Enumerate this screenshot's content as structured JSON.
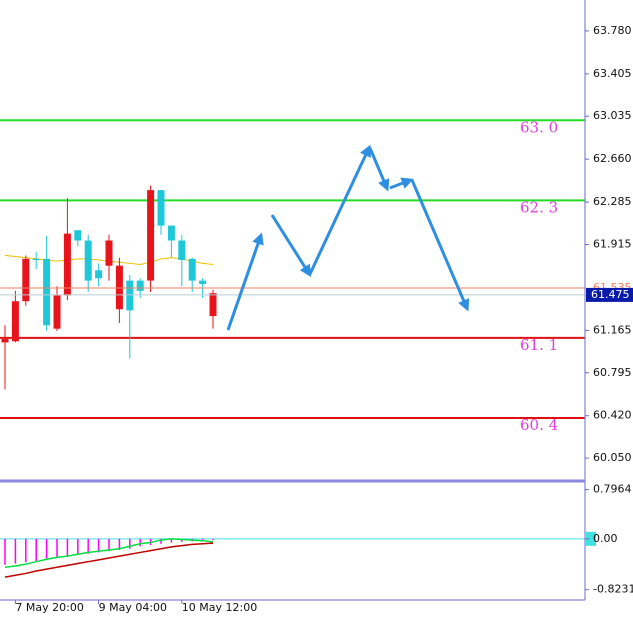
{
  "chart_data": [
    {
      "type": "candlestick",
      "categories": [
        null,
        "7 May 20:00",
        null,
        null,
        null,
        null,
        null,
        null,
        null,
        "9 May 04:00",
        null,
        null,
        null,
        null,
        null,
        null,
        null,
        "10 May 12:00",
        null,
        null,
        null
      ],
      "open": [
        61.09,
        61.42,
        61.79,
        61.78,
        61.21,
        61.47,
        62.01,
        61.95,
        61.6,
        61.62,
        61.95,
        61.73,
        61.34,
        61.51,
        62.39,
        62.08,
        61.95,
        61.78,
        61.6,
        61.57,
        61.49
      ],
      "high": [
        61.21,
        61.51,
        61.82,
        61.85,
        61.99,
        61.55,
        62.32,
        62.04,
        62.0,
        61.75,
        62.0,
        61.8,
        61.65,
        61.62,
        62.43,
        62.39,
        62.08,
        62.0,
        61.8,
        61.62,
        61.52
      ],
      "low": [
        60.65,
        61.06,
        61.38,
        61.7,
        61.16,
        61.16,
        61.43,
        61.9,
        61.5,
        61.55,
        61.6,
        61.23,
        60.92,
        61.45,
        61.5,
        62.0,
        61.8,
        61.55,
        61.5,
        61.45,
        61.18
      ],
      "close": [
        61.06,
        61.07,
        61.42,
        61.79,
        61.79,
        61.18,
        61.47,
        62.04,
        61.95,
        61.69,
        61.73,
        61.35,
        61.6,
        61.6,
        61.6,
        62.39,
        62.08,
        61.95,
        61.79,
        61.6,
        61.29
      ],
      "up_color": "#1ec8d8",
      "down_color": "#e8141c",
      "ma": {
        "color": "#f0c000",
        "values": [
          61.82,
          61.81,
          61.8,
          61.79,
          61.78,
          61.77,
          61.78,
          61.79,
          61.79,
          61.78,
          61.77,
          61.76,
          61.75,
          61.74,
          61.76,
          61.79,
          61.8,
          61.79,
          61.77,
          61.75,
          61.74
        ]
      },
      "ylim": [
        59.85,
        64.05
      ],
      "yticks": [
        {
          "value": 63.78,
          "label": "63.780"
        },
        63.405,
        63.035,
        {
          "value": 62.66,
          "label": "62.660"
        },
        62.285,
        61.915,
        61.165,
        60.795,
        {
          "value": 60.42,
          "label": "60.420"
        },
        {
          "value": 60.05,
          "label": "60.050"
        }
      ],
      "levels": [
        {
          "value": 63.0,
          "label": "63. 0",
          "color": "#22dd22"
        },
        {
          "value": 62.3,
          "label": "62. 3",
          "color": "#22dd22"
        },
        {
          "value": 61.1,
          "label": "61. 1",
          "color": "#e01010"
        },
        {
          "value": 60.4,
          "label": "60. 4",
          "color": "#e01010"
        }
      ],
      "ask": {
        "value": 61.535,
        "label": "61.535",
        "color": "#f08060"
      },
      "bid": {
        "value": 61.475,
        "label": "61.475",
        "color": "#b8ccd4",
        "box_color": "#0a1aa8"
      }
    },
    {
      "type": "macd",
      "histogram": {
        "color": "#ff00ff",
        "values": [
          -0.42,
          -0.4,
          -0.38,
          -0.36,
          -0.34,
          -0.3,
          -0.28,
          -0.26,
          -0.24,
          -0.22,
          -0.2,
          -0.18,
          -0.16,
          -0.12,
          -0.1,
          -0.08,
          -0.06,
          -0.05,
          -0.04,
          -0.03,
          -0.02
        ]
      },
      "series": [
        {
          "color": "#00e040",
          "values": [
            -0.46,
            -0.44,
            -0.41,
            -0.37,
            -0.33,
            -0.3,
            -0.28,
            -0.25,
            -0.22,
            -0.2,
            -0.18,
            -0.16,
            -0.12,
            -0.08,
            -0.06,
            -0.02,
            0.0,
            -0.01,
            -0.02,
            -0.03,
            -0.05
          ]
        },
        {
          "color": "#c00000",
          "values": [
            -0.62,
            -0.59,
            -0.56,
            -0.52,
            -0.49,
            -0.46,
            -0.43,
            -0.4,
            -0.37,
            -0.34,
            -0.31,
            -0.28,
            -0.25,
            -0.22,
            -0.19,
            -0.16,
            -0.13,
            -0.11,
            -0.09,
            -0.08,
            -0.07
          ]
        }
      ],
      "zero_color": "#40e0e0",
      "ylim": [
        -0.99,
        0.92
      ],
      "yticks": [
        {
          "value": 0.7964,
          "label": "0.7964"
        },
        {
          "value": 0,
          "label": "0.00"
        },
        {
          "value": -0.8231,
          "label": "-0.8231"
        }
      ]
    }
  ]
}
